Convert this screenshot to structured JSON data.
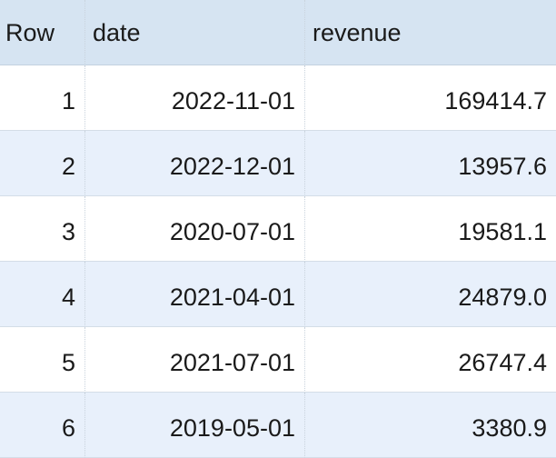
{
  "table": {
    "columns": [
      "Row",
      "date",
      "revenue"
    ],
    "rows": [
      {
        "row": "1",
        "date": "2022-11-01",
        "revenue": "169414.7"
      },
      {
        "row": "2",
        "date": "2022-12-01",
        "revenue": "13957.6"
      },
      {
        "row": "3",
        "date": "2020-07-01",
        "revenue": "19581.1"
      },
      {
        "row": "4",
        "date": "2021-04-01",
        "revenue": "24879.0"
      },
      {
        "row": "5",
        "date": "2021-07-01",
        "revenue": "26747.4"
      },
      {
        "row": "6",
        "date": "2019-05-01",
        "revenue": "3380.9"
      }
    ]
  },
  "colors": {
    "header_bg": "#d6e4f2",
    "stripe_bg": "#e8f0fb",
    "row_bg": "#ffffff"
  }
}
